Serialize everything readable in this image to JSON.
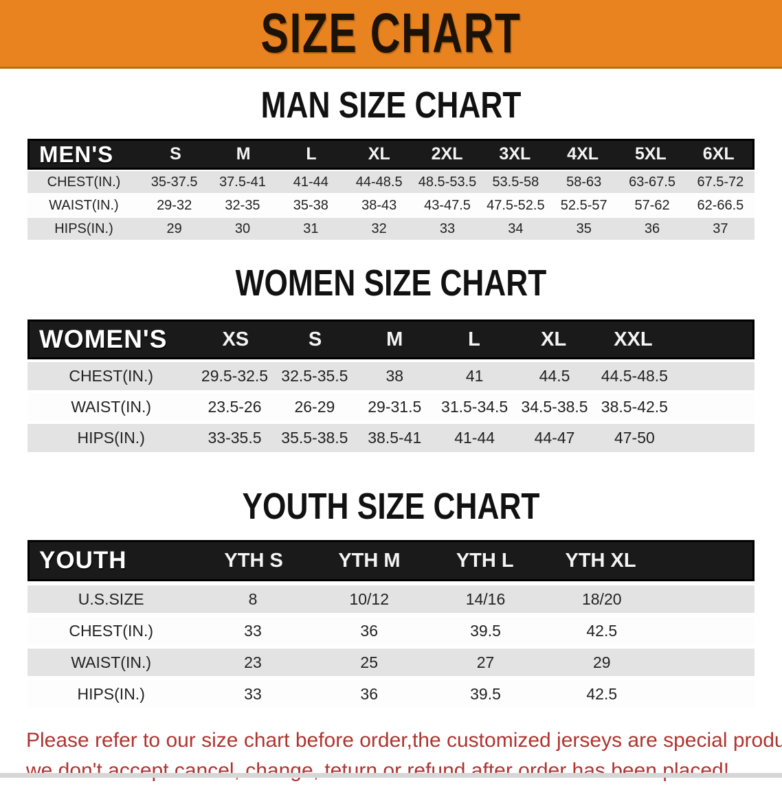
{
  "banner": {
    "title": "SIZE CHART",
    "bg_color": "#e8831f",
    "text_color": "#1d1206"
  },
  "sections": [
    {
      "heading": "MAN SIZE CHART",
      "table": {
        "header_label": "MEN'S",
        "columns": [
          "S",
          "M",
          "L",
          "XL",
          "2XL",
          "3XL",
          "4XL",
          "5XL",
          "6XL"
        ],
        "rows": [
          {
            "label": "CHEST(IN.)",
            "values": [
              "35-37.5",
              "37.5-41",
              "41-44",
              "44-48.5",
              "48.5-53.5",
              "53.5-58",
              "58-63",
              "63-67.5",
              "67.5-72"
            ]
          },
          {
            "label": "WAIST(IN.)",
            "values": [
              "29-32",
              "32-35",
              "35-38",
              "38-43",
              "43-47.5",
              "47.5-52.5",
              "52.5-57",
              "57-62",
              "62-66.5"
            ]
          },
          {
            "label": "HIPS(IN.)",
            "values": [
              "29",
              "30",
              "31",
              "32",
              "33",
              "34",
              "35",
              "36",
              "37"
            ]
          }
        ]
      }
    },
    {
      "heading": "WOMEN SIZE CHART",
      "table": {
        "header_label": "WOMEN'S",
        "columns": [
          "XS",
          "S",
          "M",
          "L",
          "XL",
          "XXL"
        ],
        "rows": [
          {
            "label": "CHEST(IN.)",
            "values": [
              "29.5-32.5",
              "32.5-35.5",
              "38",
              "41",
              "44.5",
              "44.5-48.5"
            ]
          },
          {
            "label": "WAIST(IN.)",
            "values": [
              "23.5-26",
              "26-29",
              "29-31.5",
              "31.5-34.5",
              "34.5-38.5",
              "38.5-42.5"
            ]
          },
          {
            "label": "HIPS(IN.)",
            "values": [
              "33-35.5",
              "35.5-38.5",
              "38.5-41",
              "41-44",
              "44-47",
              "47-50"
            ]
          }
        ]
      }
    },
    {
      "heading": "YOUTH SIZE CHART",
      "table": {
        "header_label": "YOUTH",
        "columns": [
          "YTH S",
          "YTH M",
          "YTH L",
          "YTH XL"
        ],
        "rows": [
          {
            "label": "U.S.SIZE",
            "values": [
              "8",
              "10/12",
              "14/16",
              "18/20"
            ]
          },
          {
            "label": "CHEST(IN.)",
            "values": [
              "33",
              "36",
              "39.5",
              "42.5"
            ]
          },
          {
            "label": "WAIST(IN.)",
            "values": [
              "23",
              "25",
              "27",
              "29"
            ]
          },
          {
            "label": "HIPS(IN.)",
            "values": [
              "33",
              "36",
              "39.5",
              "42.5"
            ]
          }
        ]
      }
    }
  ],
  "disclaimer": {
    "line1": "Please refer to our size chart before order,the customized jerseys are special products,",
    "line2": "we don't accept cancel, change, teturn or refund after order has been placed!",
    "text_color": "#b03430"
  },
  "style_colors": {
    "table_header_bg": "#1a1a1a",
    "row_shaded": "#e3e3e3",
    "row_plain": "#fdfdfd",
    "bottom_strip": "#d6d6d6"
  }
}
